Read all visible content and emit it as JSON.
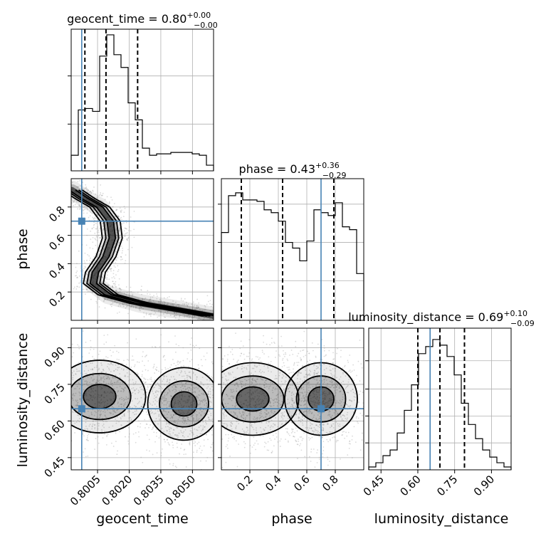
{
  "chart_data": {
    "type": "corner",
    "parameters": [
      {
        "name": "geocent_time",
        "label": "geocent_time",
        "range": [
          0.79925,
          0.806
        ],
        "ticks": [
          0.8005,
          0.802,
          0.8035,
          0.805
        ],
        "tick_labels": [
          "0.8005",
          "0.8020",
          "0.8035",
          "0.8050"
        ],
        "title_main": "geocent_time = 0.80",
        "title_plus": "+0.00",
        "title_minus": "−0.00",
        "truth": 0.79975,
        "quantiles": [
          0.7999,
          0.8009,
          0.8024
        ],
        "hist_edges": [
          0.79925,
          0.799587,
          0.799925,
          0.800263,
          0.8006,
          0.800937,
          0.801275,
          0.801612,
          0.80195,
          0.802287,
          0.802625,
          0.802962,
          0.8033,
          0.803637,
          0.803975,
          0.804312,
          0.80465,
          0.804987,
          0.805325,
          0.805662,
          0.806
        ],
        "hist_values": [
          0.11,
          0.43,
          0.44,
          0.42,
          0.81,
          0.96,
          0.82,
          0.73,
          0.48,
          0.36,
          0.16,
          0.11,
          0.12,
          0.12,
          0.13,
          0.13,
          0.13,
          0.12,
          0.11,
          0.04
        ],
        "hist_ticks": [
          0.33,
          0.67
        ]
      },
      {
        "name": "phase",
        "label": "phase",
        "range": [
          0.0,
          1.0
        ],
        "ticks": [
          0.2,
          0.4,
          0.6,
          0.8
        ],
        "tick_labels": [
          "0.2",
          "0.4",
          "0.6",
          "0.8"
        ],
        "title_main": "phase = 0.43",
        "title_plus": "+0.36",
        "title_minus": "−0.29",
        "truth": 0.7,
        "quantiles": [
          0.14,
          0.43,
          0.79
        ],
        "hist_edges": [
          0.0,
          0.05,
          0.1,
          0.15,
          0.2,
          0.25,
          0.3,
          0.35,
          0.4,
          0.45,
          0.5,
          0.55,
          0.6,
          0.65,
          0.7,
          0.75,
          0.8,
          0.85,
          0.9,
          0.95,
          1.0
        ],
        "hist_values": [
          0.62,
          0.88,
          0.9,
          0.85,
          0.85,
          0.84,
          0.78,
          0.76,
          0.7,
          0.55,
          0.51,
          0.42,
          0.56,
          0.78,
          0.76,
          0.74,
          0.83,
          0.66,
          0.64,
          0.33
        ],
        "hist_ticks": [
          0.28,
          0.55,
          0.82
        ]
      },
      {
        "name": "luminosity_distance",
        "label": "luminosity_distance",
        "range": [
          0.4,
          0.98
        ],
        "ticks": [
          0.45,
          0.6,
          0.75,
          0.9
        ],
        "tick_labels": [
          "0.45",
          "0.60",
          "0.75",
          "0.90"
        ],
        "title_main": "luminosity_distance = 0.69",
        "title_plus": "+0.10",
        "title_minus": "−0.09",
        "truth": 0.65,
        "quantiles": [
          0.6,
          0.69,
          0.79
        ],
        "hist_edges": [
          0.4,
          0.429,
          0.458,
          0.487,
          0.516,
          0.545,
          0.574,
          0.603,
          0.632,
          0.661,
          0.69,
          0.719,
          0.748,
          0.777,
          0.806,
          0.835,
          0.864,
          0.893,
          0.922,
          0.951,
          0.98
        ],
        "hist_values": [
          0.02,
          0.05,
          0.1,
          0.14,
          0.26,
          0.42,
          0.6,
          0.82,
          0.87,
          0.92,
          0.88,
          0.8,
          0.67,
          0.47,
          0.32,
          0.22,
          0.14,
          0.09,
          0.05,
          0.02
        ],
        "hist_ticks": [
          0.19,
          0.38,
          0.57,
          0.77
        ]
      }
    ],
    "density_contours": {
      "phase_vs_geocent_time": [
        {
          "mode_path": [
            [
              0.7993,
              0.92
            ],
            [
              0.7999,
              0.86
            ],
            [
              0.8006,
              0.8
            ],
            [
              0.8011,
              0.7
            ],
            [
              0.8012,
              0.58
            ],
            [
              0.8009,
              0.45
            ],
            [
              0.8004,
              0.34
            ],
            [
              0.8003,
              0.26
            ],
            [
              0.801,
              0.18
            ],
            [
              0.8025,
              0.12
            ],
            [
              0.8045,
              0.07
            ],
            [
              0.806,
              0.03
            ]
          ]
        }
      ],
      "luminosity_distance_vs_geocent_time": {
        "clusters": [
          {
            "x": 0.8006,
            "y": 0.7
          },
          {
            "x": 0.8046,
            "y": 0.67
          }
        ]
      },
      "luminosity_distance_vs_phase": {
        "clusters": [
          {
            "x": 0.22,
            "y": 0.69
          },
          {
            "x": 0.7,
            "y": 0.69
          }
        ]
      }
    }
  }
}
